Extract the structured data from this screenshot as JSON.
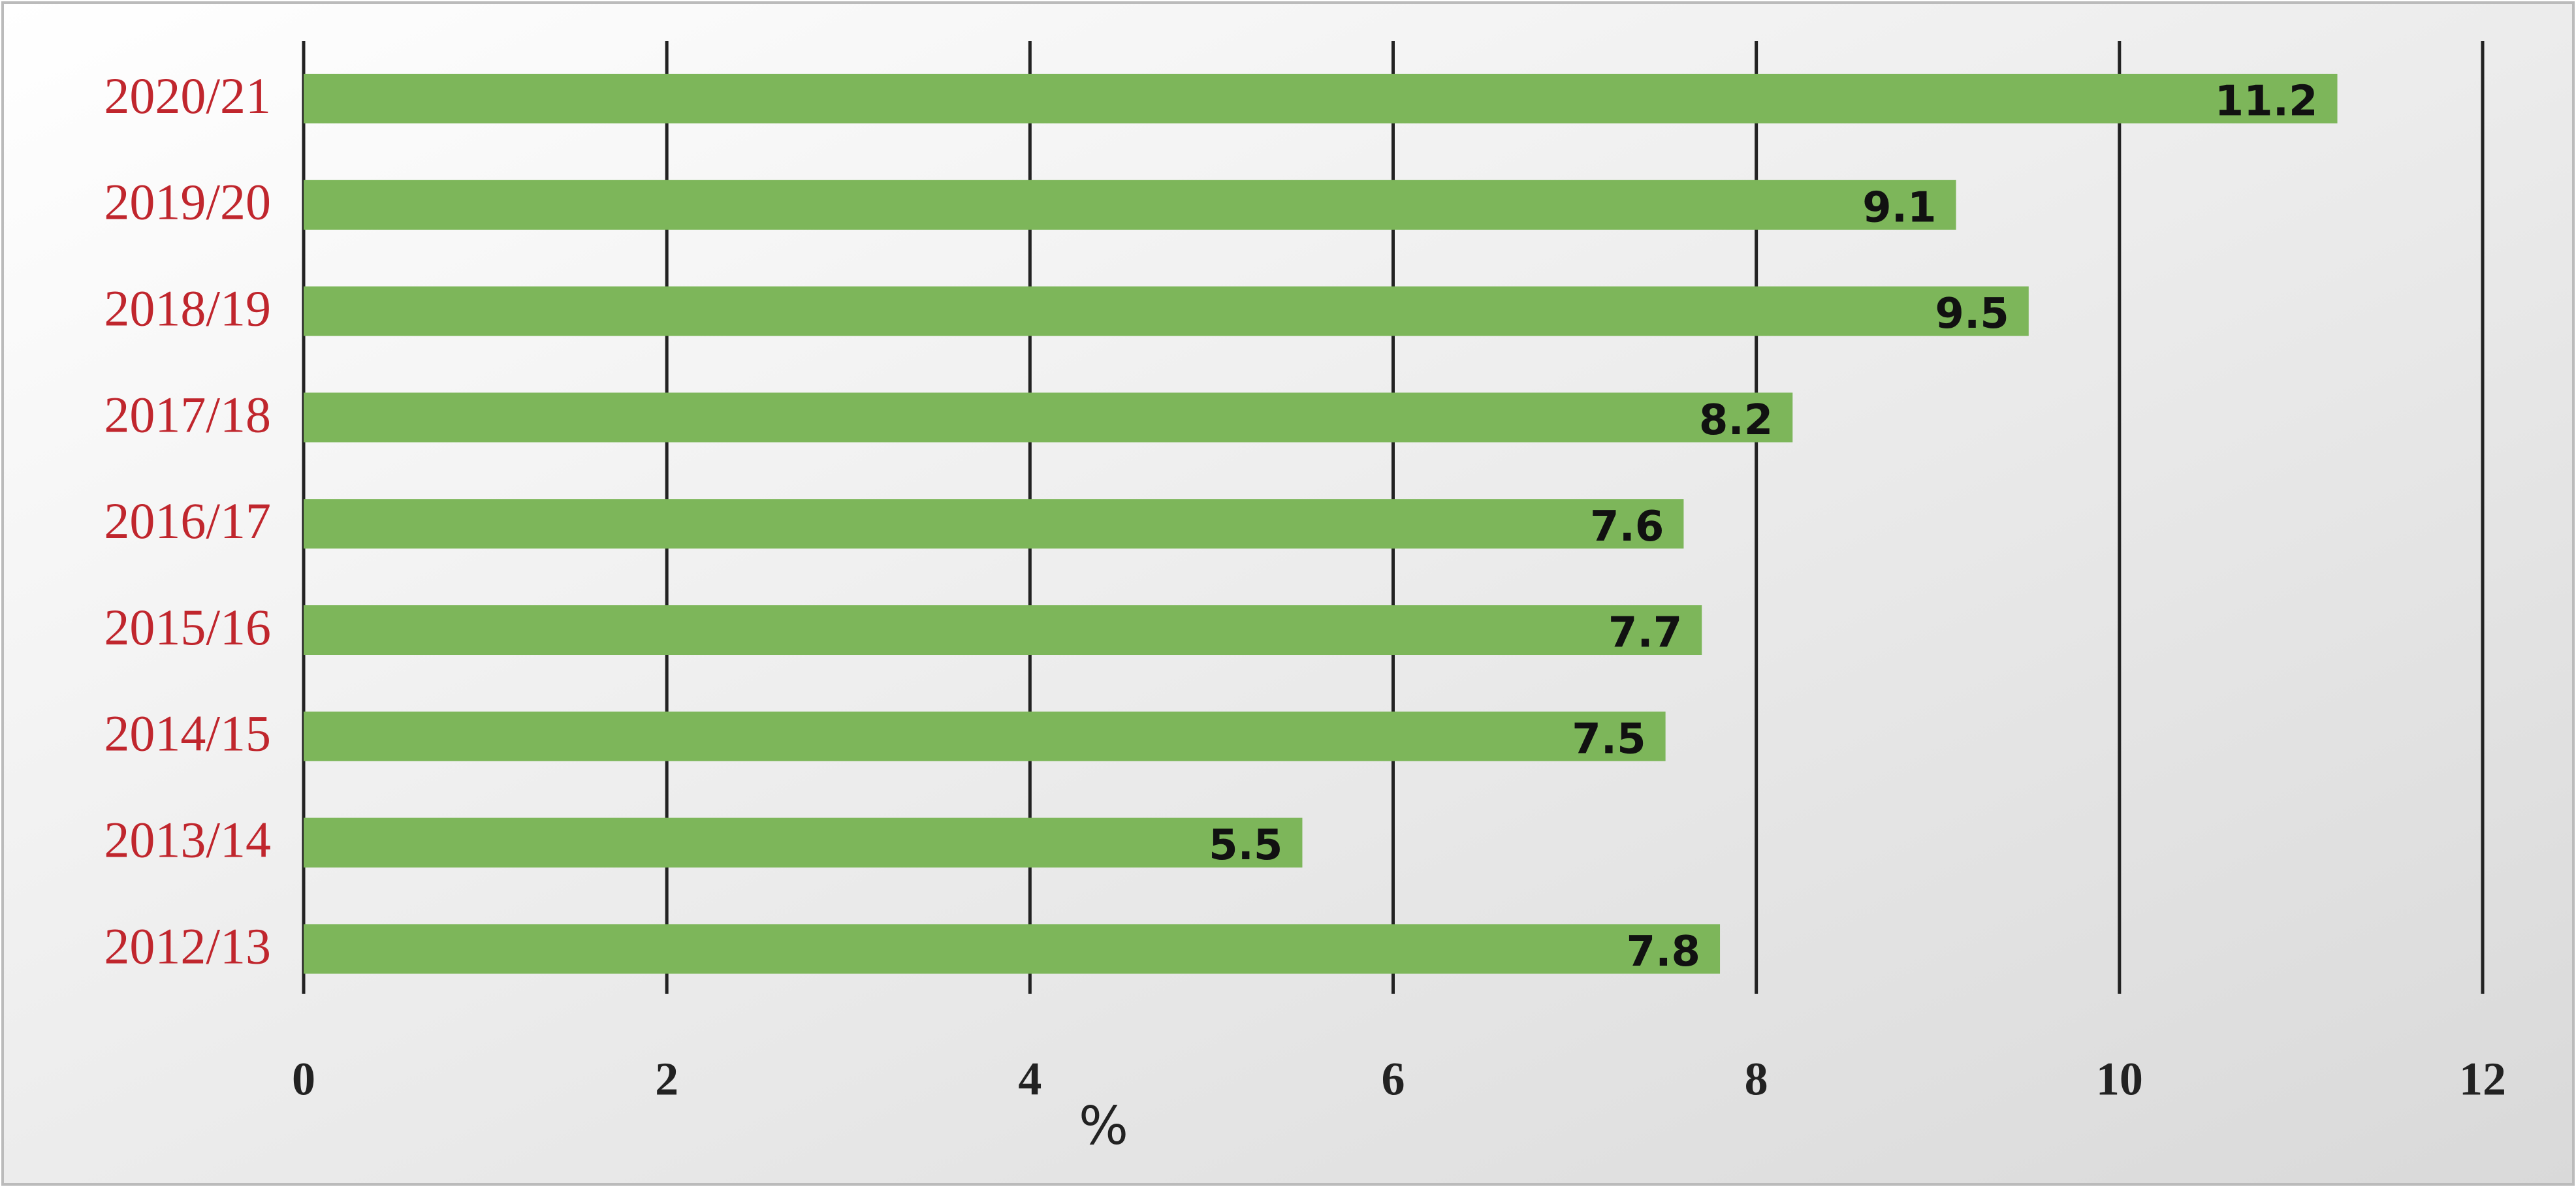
{
  "chart_data": {
    "type": "bar",
    "orientation": "horizontal",
    "categories": [
      "2020/21",
      "2019/20",
      "2018/19",
      "2017/18",
      "2016/17",
      "2015/16",
      "2014/15",
      "2013/14",
      "2012/13"
    ],
    "values": [
      11.2,
      9.1,
      9.5,
      8.2,
      7.6,
      7.7,
      7.5,
      5.5,
      7.8
    ],
    "color": "#7db65a",
    "x_label": "%",
    "xlim": [
      0,
      12
    ],
    "xticks": [
      0,
      2,
      4,
      6,
      8,
      10,
      12
    ],
    "grid": true
  }
}
